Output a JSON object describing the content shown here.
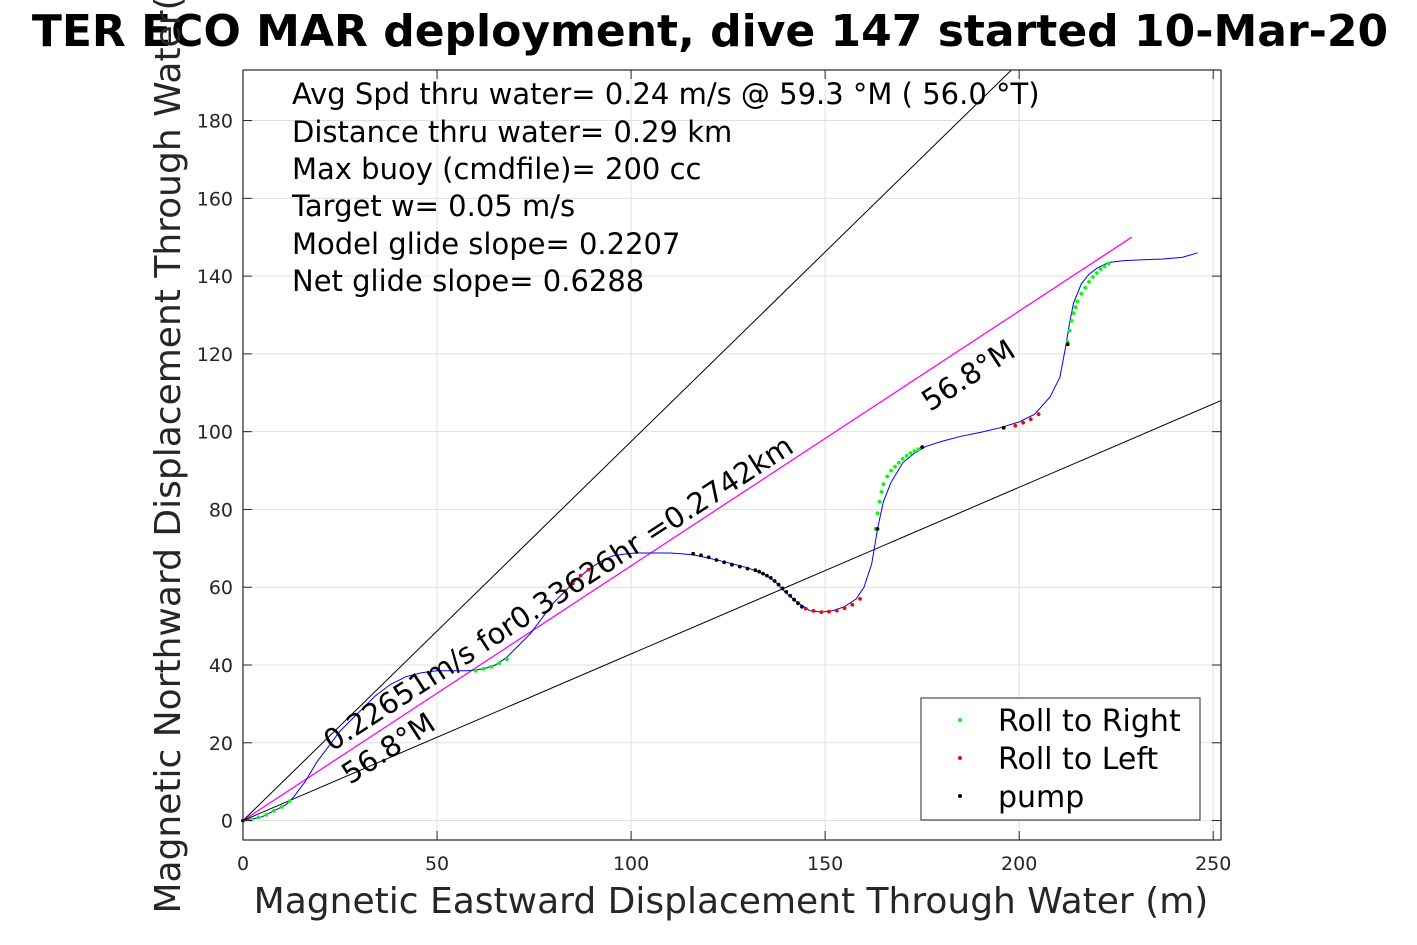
{
  "chart_data": {
    "type": "line",
    "title": "TER ECO MAR deployment, dive 147 started 10-Mar-20",
    "xlabel": "Magnetic Eastward Displacement Through Water (m)",
    "ylabel": "Magnetic Northward Displacement Through Water(",
    "xlim": [
      0,
      252
    ],
    "ylim": [
      -5,
      193
    ],
    "xticks": [
      0,
      50,
      100,
      150,
      200,
      250
    ],
    "yticks": [
      0,
      20,
      40,
      60,
      80,
      100,
      120,
      140,
      160,
      180
    ],
    "grid": true,
    "legend_position": "bottom-right",
    "info_lines": [
      "Avg Spd thru water=  0.24 m/s @  59.3 °M ( 56.0 °T)",
      "Distance thru water=  0.29 km",
      "Max buoy (cmdfile)= 200 cc",
      "Target w= 0.05 m/s",
      "Model glide slope= 0.2207",
      "Net glide slope= 0.6288"
    ],
    "rotated_labels": [
      "0.22651m/s for0.33626hr =0.2742km",
      "56.8°M",
      "56.8°M"
    ],
    "series": [
      {
        "name": "",
        "role": "track",
        "color": "#0000ff",
        "x": [
          0,
          3,
          5,
          8,
          11,
          13,
          16,
          19,
          22,
          25,
          28,
          31,
          34,
          38,
          42,
          46,
          50,
          54,
          58,
          62,
          65,
          68,
          71,
          74,
          77,
          80,
          83,
          86,
          89,
          92,
          95,
          98,
          101,
          104,
          107,
          110,
          113,
          116,
          120,
          125,
          130,
          134,
          137,
          140,
          143,
          146,
          149,
          152,
          155,
          158,
          160,
          162,
          163,
          163.5,
          165,
          167,
          170,
          173,
          176,
          180,
          185,
          190,
          195,
          200,
          204,
          208,
          210.5,
          212,
          213,
          214,
          216,
          218,
          220,
          223,
          227,
          232,
          237,
          242,
          246
        ],
        "y": [
          0,
          0.5,
          1,
          2.5,
          4,
          6,
          10,
          15,
          19,
          23,
          26,
          29,
          32,
          35,
          37,
          38,
          38.5,
          38.5,
          38.5,
          39,
          40,
          42,
          45,
          48,
          52,
          56,
          59,
          62,
          64.5,
          66.5,
          68,
          68.5,
          68.8,
          68.8,
          68.8,
          68.8,
          68.6,
          68.3,
          67.5,
          66.3,
          65,
          63.5,
          61.5,
          58.5,
          56,
          54,
          53.6,
          54,
          55,
          57,
          60,
          66,
          72,
          75,
          82,
          87,
          92,
          94.5,
          96.2,
          97.5,
          98.8,
          99.8,
          101,
          102.5,
          104.5,
          109,
          114,
          122,
          128,
          133,
          138,
          140.5,
          142,
          143.5,
          144,
          144.2,
          144.4,
          144.8,
          146
        ]
      },
      {
        "name": "",
        "role": "reference-line",
        "color": "#ff00ff",
        "x": [
          0,
          229
        ],
        "y": [
          0,
          150
        ]
      },
      {
        "name": "",
        "role": "heading-line-upper",
        "color": "#000000",
        "x": [
          0,
          198
        ],
        "y": [
          0,
          193
        ]
      },
      {
        "name": "",
        "role": "heading-line-lower",
        "color": "#000000",
        "x": [
          0,
          252
        ],
        "y": [
          0,
          108
        ]
      },
      {
        "name": "Roll to Right",
        "color": "#00ff00",
        "x": [
          2,
          4,
          6,
          8,
          10,
          12,
          60,
          62,
          64,
          66,
          68,
          163,
          163.5,
          164,
          164.5,
          165,
          166,
          167,
          168,
          169,
          170,
          171,
          172,
          173,
          174,
          175,
          212.5,
          213,
          213.5,
          214,
          214.5,
          215,
          216,
          217,
          218,
          219,
          220,
          221,
          222,
          223
        ],
        "y": [
          0.2,
          0.8,
          1.5,
          2.5,
          3.5,
          5,
          38.5,
          39,
          39.5,
          40.5,
          41.5,
          75,
          79,
          82,
          84.5,
          86.5,
          88.5,
          90,
          91,
          92,
          93,
          93.8,
          94.5,
          95,
          95.5,
          96,
          123,
          126,
          128.5,
          130.5,
          132,
          133.5,
          135.5,
          137,
          138.5,
          139.8,
          140.8,
          141.8,
          142.5,
          143.2
        ]
      },
      {
        "name": "Roll to Left",
        "color": "#ff0000",
        "x": [
          83,
          85,
          87,
          89,
          145,
          147,
          149,
          151,
          153,
          155,
          157,
          159,
          199,
          201,
          203,
          205
        ],
        "y": [
          59,
          61,
          63,
          64.5,
          54.5,
          53.9,
          53.6,
          53.7,
          54,
          54.6,
          55.5,
          57,
          101.5,
          102.3,
          103.2,
          104.5
        ]
      },
      {
        "name": "pump",
        "color": "#000000",
        "x": [
          0,
          116,
          118,
          120,
          122,
          124,
          126,
          128,
          130,
          132,
          133,
          134,
          135,
          136,
          137,
          138,
          139,
          140,
          141,
          142,
          143,
          144,
          163.5,
          175,
          196,
          212.5
        ],
        "y": [
          0,
          68.6,
          68.2,
          67.7,
          67,
          66.4,
          65.8,
          65.3,
          64.8,
          64.4,
          64,
          63.5,
          63,
          62.4,
          61.6,
          60.7,
          59.7,
          58.8,
          57.8,
          56.8,
          55.9,
          55,
          75,
          96,
          101,
          122.5
        ]
      }
    ]
  }
}
